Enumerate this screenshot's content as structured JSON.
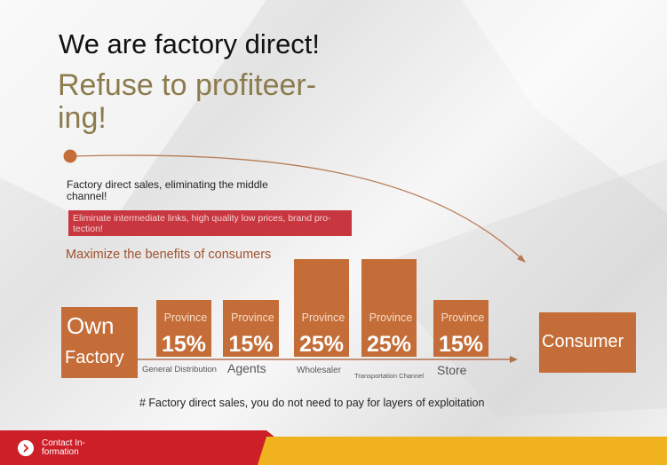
{
  "header": {
    "title": "We are factory direct!",
    "subtitle": [
      "Refuse to profiteer-",
      "ing!"
    ]
  },
  "intro": [
    "Factory direct sales, eliminating the middle",
    "channel!"
  ],
  "banner": [
    "Eliminate intermediate links, high quality low prices, brand pro-",
    "tection!"
  ],
  "benefit": "Maximize the benefits of consumers",
  "start": [
    "Own",
    "Factory"
  ],
  "steps": [
    {
      "label": "Province",
      "share": "15%",
      "name": "General Distribution"
    },
    {
      "label": "Province",
      "share": "15%",
      "name": "Agents"
    },
    {
      "label": "Province",
      "share": "25%",
      "name": "Wholesaler"
    },
    {
      "label": "Province",
      "share": "25%",
      "name": "Transportation Channel"
    },
    {
      "label": "Province",
      "share": "15%",
      "name": "Store"
    }
  ],
  "end": "Consumer",
  "footnote": "# Factory direct sales, you do not need to pay for layers of exploitation",
  "footer": [
    "Contact In-",
    "formation"
  ]
}
